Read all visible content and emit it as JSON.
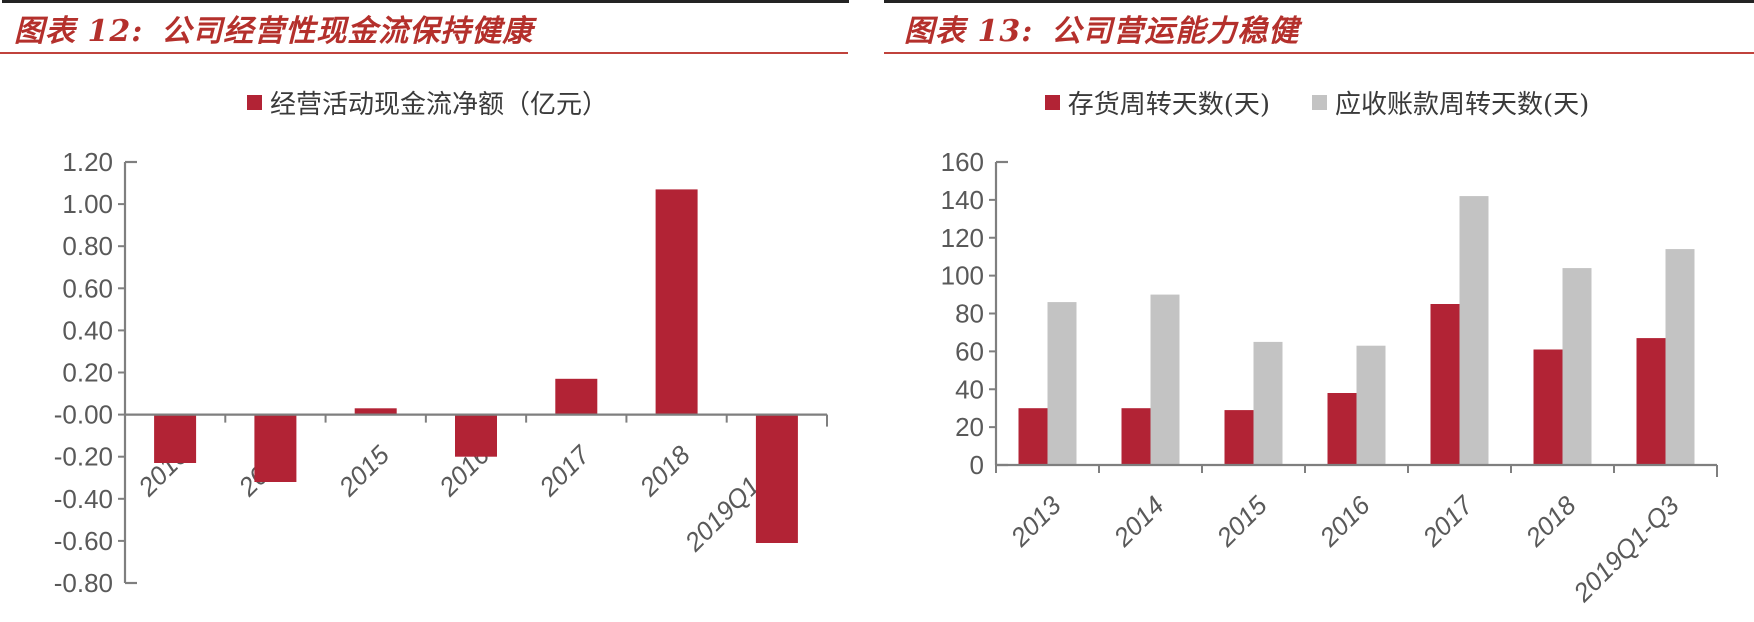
{
  "page": {
    "background": "#ffffff",
    "top_rule_color": "#232323",
    "title_rule_color": "#c0423c",
    "title_color": "#b4302c",
    "axis_color": "#7f7f7f",
    "tick_label_color": "#595959"
  },
  "chart_data": [
    {
      "type": "bar",
      "title": "图表 12: 公司经营性现金流保持健康",
      "title_prefix": "图表 12:",
      "title_text": "公司经营性现金流保持健康",
      "categories": [
        "2013",
        "2014",
        "2015",
        "2016",
        "2017",
        "2018",
        "2019Q1-Q3"
      ],
      "series": [
        {
          "name": "经营活动现金流净额（亿元）",
          "color": "#b22335",
          "values": [
            -0.23,
            -0.32,
            0.03,
            -0.2,
            0.17,
            1.07,
            -0.61
          ]
        }
      ],
      "ylim": [
        -0.8,
        1.2
      ],
      "ytick_step": 0.2,
      "ytick_decimals": 2,
      "grid": false,
      "legend_position": "top",
      "xlabel": "",
      "ylabel": ""
    },
    {
      "type": "bar",
      "title": "图表 13: 公司营运能力稳健",
      "title_prefix": "图表 13:",
      "title_text": "公司营运能力稳健",
      "categories": [
        "2013",
        "2014",
        "2015",
        "2016",
        "2017",
        "2018",
        "2019Q1-Q3"
      ],
      "series": [
        {
          "name": "存货周转天数(天)",
          "color": "#b22335",
          "values": [
            30,
            30,
            29,
            38,
            85,
            61,
            67
          ]
        },
        {
          "name": "应收账款周转天数(天)",
          "color": "#c3c3c3",
          "values": [
            86,
            90,
            65,
            63,
            142,
            104,
            114
          ]
        }
      ],
      "ylim": [
        0,
        160
      ],
      "ytick_step": 20,
      "ytick_decimals": 0,
      "grid": false,
      "legend_position": "top",
      "xlabel": "",
      "ylabel": ""
    }
  ]
}
